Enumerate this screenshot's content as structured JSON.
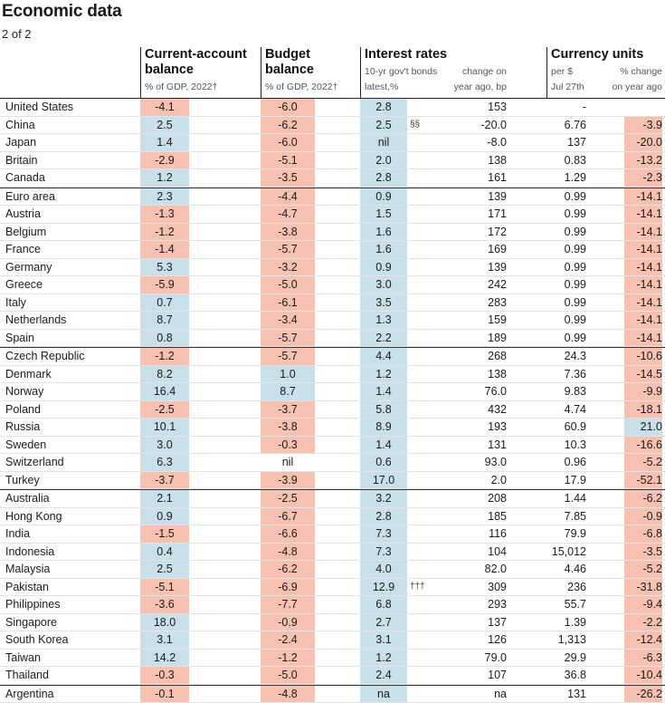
{
  "title": "Economic data",
  "subtitle": "2 of 2",
  "headers": {
    "current_account": {
      "line1": "Current-account",
      "line2": "balance",
      "sub": "% of GDP, 2022†"
    },
    "budget": {
      "line1": "Budget",
      "line2": "balance",
      "sub": "% of GDP, 2022†"
    },
    "interest": {
      "line1": "Interest rates",
      "sub1": "10-yr gov't bonds",
      "sub2": "latest,%",
      "change1": "change on",
      "change2": "year ago, bp"
    },
    "currency": {
      "line1": "Currency units",
      "per1": "per $",
      "per2": "Jul 27th",
      "chg1": "% change",
      "chg2": "on year ago"
    }
  },
  "colors": {
    "positive": "#c9dfe9",
    "negative": "#f6c1b0"
  },
  "rows": [
    {
      "country": "United States",
      "ca": "-4.1",
      "bb": "-6.0",
      "ir": "2.8",
      "fn": "",
      "irc": "153",
      "fx": "-",
      "fxc": ""
    },
    {
      "country": "China",
      "ca": "2.5",
      "bb": "-6.2",
      "ir": "2.5",
      "fn": "§§",
      "irc": "-20.0",
      "fx": "6.76",
      "fxc": "-3.9"
    },
    {
      "country": "Japan",
      "ca": "1.4",
      "bb": "-6.0",
      "ir": "nil",
      "fn": "",
      "irc": "-8.0",
      "fx": "137",
      "fxc": "-20.0"
    },
    {
      "country": "Britain",
      "ca": "-2.9",
      "bb": "-5.1",
      "ir": "2.0",
      "fn": "",
      "irc": "138",
      "fx": "0.83",
      "fxc": "-13.2"
    },
    {
      "country": "Canada",
      "ca": "1.2",
      "bb": "-3.5",
      "ir": "2.8",
      "fn": "",
      "irc": "161",
      "fx": "1.29",
      "fxc": "-2.3"
    },
    {
      "country": "Euro area",
      "ca": "2.3",
      "bb": "-4.4",
      "ir": "0.9",
      "fn": "",
      "irc": "139",
      "fx": "0.99",
      "fxc": "-14.1"
    },
    {
      "country": "Austria",
      "ca": "-1.3",
      "bb": "-4.7",
      "ir": "1.5",
      "fn": "",
      "irc": "171",
      "fx": "0.99",
      "fxc": "-14.1"
    },
    {
      "country": "Belgium",
      "ca": "-1.2",
      "bb": "-3.8",
      "ir": "1.6",
      "fn": "",
      "irc": "172",
      "fx": "0.99",
      "fxc": "-14.1"
    },
    {
      "country": "France",
      "ca": "-1.4",
      "bb": "-5.7",
      "ir": "1.6",
      "fn": "",
      "irc": "169",
      "fx": "0.99",
      "fxc": "-14.1"
    },
    {
      "country": "Germany",
      "ca": "5.3",
      "bb": "-3.2",
      "ir": "0.9",
      "fn": "",
      "irc": "139",
      "fx": "0.99",
      "fxc": "-14.1"
    },
    {
      "country": "Greece",
      "ca": "-5.9",
      "bb": "-5.0",
      "ir": "3.0",
      "fn": "",
      "irc": "242",
      "fx": "0.99",
      "fxc": "-14.1"
    },
    {
      "country": "Italy",
      "ca": "0.7",
      "bb": "-6.1",
      "ir": "3.5",
      "fn": "",
      "irc": "283",
      "fx": "0.99",
      "fxc": "-14.1"
    },
    {
      "country": "Netherlands",
      "ca": "8.7",
      "bb": "-3.4",
      "ir": "1.3",
      "fn": "",
      "irc": "159",
      "fx": "0.99",
      "fxc": "-14.1"
    },
    {
      "country": "Spain",
      "ca": "0.8",
      "bb": "-5.7",
      "ir": "2.2",
      "fn": "",
      "irc": "189",
      "fx": "0.99",
      "fxc": "-14.1"
    },
    {
      "country": "Czech Republic",
      "ca": "-1.2",
      "bb": "-5.7",
      "ir": "4.4",
      "fn": "",
      "irc": "268",
      "fx": "24.3",
      "fxc": "-10.6"
    },
    {
      "country": "Denmark",
      "ca": "8.2",
      "bb": "1.0",
      "ir": "1.2",
      "fn": "",
      "irc": "138",
      "fx": "7.36",
      "fxc": "-14.5"
    },
    {
      "country": "Norway",
      "ca": "16.4",
      "bb": "8.7",
      "ir": "1.4",
      "fn": "",
      "irc": "76.0",
      "fx": "9.83",
      "fxc": "-9.9"
    },
    {
      "country": "Poland",
      "ca": "-2.5",
      "bb": "-3.7",
      "ir": "5.8",
      "fn": "",
      "irc": "432",
      "fx": "4.74",
      "fxc": "-18.1"
    },
    {
      "country": "Russia",
      "ca": "10.1",
      "bb": "-3.8",
      "ir": "8.9",
      "fn": "",
      "irc": "193",
      "fx": "60.9",
      "fxc": "21.0"
    },
    {
      "country": "Sweden",
      "ca": "3.0",
      "bb": "-0.3",
      "ir": "1.4",
      "fn": "",
      "irc": "131",
      "fx": "10.3",
      "fxc": "-16.6"
    },
    {
      "country": "Switzerland",
      "ca": "6.3",
      "bb": "nil",
      "ir": "0.6",
      "fn": "",
      "irc": "93.0",
      "fx": "0.96",
      "fxc": "-5.2"
    },
    {
      "country": "Turkey",
      "ca": "-3.7",
      "bb": "-3.9",
      "ir": "17.0",
      "fn": "",
      "irc": "2.0",
      "fx": "17.9",
      "fxc": "-52.1"
    },
    {
      "country": "Australia",
      "ca": "2.1",
      "bb": "-2.5",
      "ir": "3.2",
      "fn": "",
      "irc": "208",
      "fx": "1.44",
      "fxc": "-6.2"
    },
    {
      "country": "Hong Kong",
      "ca": "0.9",
      "bb": "-6.7",
      "ir": "2.8",
      "fn": "",
      "irc": "185",
      "fx": "7.85",
      "fxc": "-0.9"
    },
    {
      "country": "India",
      "ca": "-1.5",
      "bb": "-6.6",
      "ir": "7.3",
      "fn": "",
      "irc": "116",
      "fx": "79.9",
      "fxc": "-6.8"
    },
    {
      "country": "Indonesia",
      "ca": "0.4",
      "bb": "-4.8",
      "ir": "7.3",
      "fn": "",
      "irc": "104",
      "fx": "15,012",
      "fxc": "-3.5"
    },
    {
      "country": "Malaysia",
      "ca": "2.5",
      "bb": "-6.2",
      "ir": "4.0",
      "fn": "",
      "irc": "82.0",
      "fx": "4.46",
      "fxc": "-5.2"
    },
    {
      "country": "Pakistan",
      "ca": "-5.1",
      "bb": "-6.9",
      "ir": "12.9",
      "fn": "†††",
      "irc": "309",
      "fx": "236",
      "fxc": "-31.8"
    },
    {
      "country": "Philippines",
      "ca": "-3.6",
      "bb": "-7.7",
      "ir": "6.8",
      "fn": "",
      "irc": "293",
      "fx": "55.7",
      "fxc": "-9.4"
    },
    {
      "country": "Singapore",
      "ca": "18.0",
      "bb": "-0.9",
      "ir": "2.7",
      "fn": "",
      "irc": "137",
      "fx": "1.39",
      "fxc": "-2.2"
    },
    {
      "country": "South Korea",
      "ca": "3.1",
      "bb": "-2.4",
      "ir": "3.1",
      "fn": "",
      "irc": "126",
      "fx": "1,313",
      "fxc": "-12.4"
    },
    {
      "country": "Taiwan",
      "ca": "14.2",
      "bb": "-1.2",
      "ir": "1.2",
      "fn": "",
      "irc": "79.0",
      "fx": "29.9",
      "fxc": "-6.3"
    },
    {
      "country": "Thailand",
      "ca": "-0.3",
      "bb": "-5.0",
      "ir": "2.4",
      "fn": "",
      "irc": "107",
      "fx": "36.8",
      "fxc": "-10.4"
    },
    {
      "country": "Argentina",
      "ca": "-0.1",
      "bb": "-4.8",
      "ir": "na",
      "fn": "",
      "irc": "na",
      "fx": "131",
      "fxc": "-26.2"
    }
  ]
}
